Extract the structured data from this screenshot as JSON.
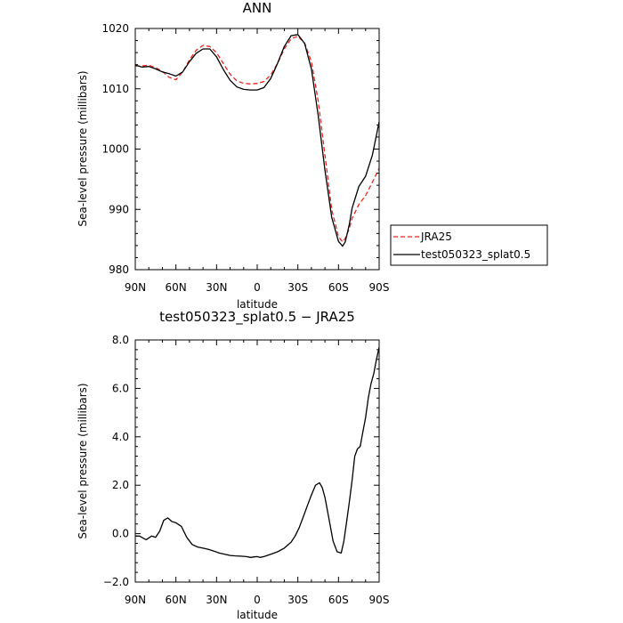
{
  "chart_data": [
    {
      "type": "line",
      "title": "ANN",
      "xlabel": "latitude",
      "ylabel": "Sea-level pressure (millibars)",
      "xlim": [
        90,
        -90
      ],
      "ylim": [
        980,
        1020
      ],
      "xticks": [
        90,
        60,
        30,
        0,
        -30,
        -60,
        -90
      ],
      "xtick_labels": [
        "90N",
        "60N",
        "30N",
        "0",
        "30S",
        "60S",
        "90S"
      ],
      "yticks": [
        980,
        990,
        1000,
        1010,
        1020
      ],
      "ytick_labels": [
        "980",
        "990",
        "1000",
        "1010",
        "1020"
      ],
      "legend": {
        "placement": "right"
      },
      "series": [
        {
          "name": "JRA25",
          "color": "#e8231f",
          "dash": "dashed",
          "x": [
            90,
            85,
            80,
            75,
            70,
            65,
            60,
            55,
            50,
            45,
            40,
            35,
            30,
            25,
            20,
            15,
            10,
            5,
            0,
            -5,
            -10,
            -15,
            -20,
            -25,
            -30,
            -35,
            -40,
            -45,
            -50,
            -55,
            -60,
            -63,
            -65,
            -68,
            -70,
            -75,
            -80,
            -85,
            -90
          ],
          "y": [
            1013.8,
            1013.8,
            1013.9,
            1013.5,
            1012.9,
            1011.9,
            1011.5,
            1012.8,
            1014.8,
            1016.4,
            1017.2,
            1017.0,
            1016.0,
            1014.2,
            1012.4,
            1011.3,
            1010.9,
            1010.8,
            1010.9,
            1011.2,
            1012.3,
            1014.2,
            1016.6,
            1018.3,
            1018.7,
            1017.6,
            1014.5,
            1008.0,
            999.0,
            990.0,
            985.5,
            984.6,
            985.2,
            986.8,
            988.5,
            990.8,
            992.3,
            994.5,
            996.8
          ]
        },
        {
          "name": "test050323_splat0.5",
          "color": "#000000",
          "dash": "solid",
          "x": [
            90,
            85,
            80,
            75,
            70,
            65,
            60,
            55,
            50,
            45,
            40,
            35,
            30,
            25,
            20,
            15,
            10,
            5,
            0,
            -5,
            -10,
            -15,
            -20,
            -25,
            -30,
            -35,
            -40,
            -45,
            -50,
            -55,
            -60,
            -63,
            -65,
            -68,
            -70,
            -75,
            -80,
            -85,
            -90
          ],
          "y": [
            1013.9,
            1013.6,
            1013.7,
            1013.3,
            1012.8,
            1012.5,
            1012.1,
            1012.8,
            1014.5,
            1015.9,
            1016.6,
            1016.6,
            1015.3,
            1013.2,
            1011.4,
            1010.3,
            1009.9,
            1009.8,
            1009.8,
            1010.2,
            1011.7,
            1014.2,
            1017.0,
            1018.8,
            1019.0,
            1017.5,
            1013.3,
            1005.6,
            996.5,
            988.7,
            984.7,
            983.9,
            984.6,
            987.5,
            990.2,
            993.8,
            995.5,
            999.0,
            1004.5
          ]
        }
      ]
    },
    {
      "type": "line",
      "title": "test050323_splat0.5 − JRA25",
      "xlabel": "latitude",
      "ylabel": "Sea-level pressure (millibars)",
      "xlim": [
        90,
        -90
      ],
      "ylim": [
        -2,
        8
      ],
      "xticks": [
        90,
        60,
        30,
        0,
        -30,
        -60,
        -90
      ],
      "xtick_labels": [
        "90N",
        "60N",
        "30N",
        "0",
        "30S",
        "60S",
        "90S"
      ],
      "yticks": [
        -2,
        0,
        2,
        4,
        6,
        8
      ],
      "ytick_labels": [
        "−2.0",
        "0.0",
        "2.0",
        "4.0",
        "6.0",
        "8.0"
      ],
      "series": [
        {
          "color": "#000000",
          "dash": "solid",
          "x": [
            90,
            87,
            82,
            78,
            75,
            72,
            69,
            66,
            63,
            60,
            56,
            52,
            48,
            44,
            40,
            36,
            32,
            28,
            24,
            20,
            16,
            12,
            8,
            5,
            2,
            0,
            -2,
            -5,
            -10,
            -15,
            -20,
            -25,
            -28,
            -31,
            -34,
            -37,
            -40,
            -43,
            -46,
            -48,
            -50,
            -53,
            -56,
            -59,
            -62,
            -64,
            -66,
            -68,
            -70,
            -72,
            -74,
            -76,
            -78,
            -80,
            -82,
            -84,
            -86,
            -88,
            -90
          ],
          "y": [
            -0.1,
            -0.1,
            -0.25,
            -0.1,
            -0.15,
            0.1,
            0.55,
            0.65,
            0.5,
            0.45,
            0.3,
            -0.15,
            -0.45,
            -0.55,
            -0.6,
            -0.65,
            -0.72,
            -0.8,
            -0.85,
            -0.9,
            -0.92,
            -0.93,
            -0.95,
            -0.98,
            -0.96,
            -0.95,
            -0.98,
            -0.95,
            -0.85,
            -0.75,
            -0.6,
            -0.35,
            -0.1,
            0.25,
            0.7,
            1.15,
            1.6,
            2.0,
            2.1,
            1.9,
            1.5,
            0.6,
            -0.3,
            -0.75,
            -0.8,
            -0.3,
            0.5,
            1.3,
            2.2,
            3.2,
            3.5,
            3.6,
            4.2,
            4.8,
            5.6,
            6.2,
            6.6,
            7.2,
            7.7
          ]
        }
      ]
    }
  ]
}
